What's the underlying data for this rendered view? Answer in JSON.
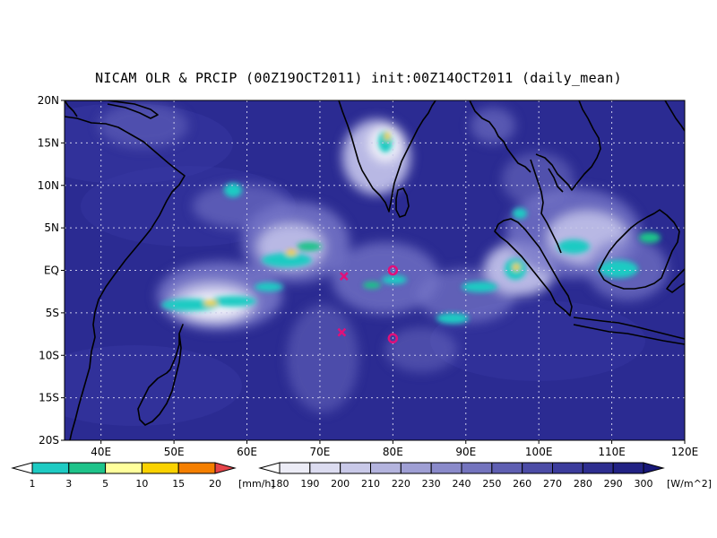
{
  "title": "NICAM OLR & PRCIP (00Z19OCT2011) init:00Z14OCT2011 (daily_mean)",
  "map": {
    "lon_range": [
      35,
      120
    ],
    "lat_range": [
      -20,
      20
    ],
    "lat_ticks": [
      {
        "value": 20,
        "label": "20N"
      },
      {
        "value": 15,
        "label": "15N"
      },
      {
        "value": 10,
        "label": "10N"
      },
      {
        "value": 5,
        "label": "5N"
      },
      {
        "value": 0,
        "label": "EQ"
      },
      {
        "value": -5,
        "label": "5S"
      },
      {
        "value": -10,
        "label": "10S"
      },
      {
        "value": -15,
        "label": "15S"
      },
      {
        "value": -20,
        "label": "20S"
      }
    ],
    "lon_ticks": [
      {
        "value": 40,
        "label": "40E"
      },
      {
        "value": 50,
        "label": "50E"
      },
      {
        "value": 60,
        "label": "60E"
      },
      {
        "value": 70,
        "label": "70E"
      },
      {
        "value": 80,
        "label": "80E"
      },
      {
        "value": 90,
        "label": "90E"
      },
      {
        "value": 100,
        "label": "100E"
      },
      {
        "value": 110,
        "label": "110E"
      },
      {
        "value": 120,
        "label": "120E"
      }
    ],
    "colors": {
      "ocean_deep": "#2b2b92",
      "ocean_mid": "#3c3ca8",
      "cloud_mid": "#7777c8",
      "cloud_light": "#b8b8e4",
      "cloud_white": "#f2f2fa",
      "coast": "#000000",
      "grid": "#c8c8e8",
      "marker": "#e0107a"
    },
    "markers": [
      {
        "type": "x",
        "lon": 73.3,
        "lat": -0.7
      },
      {
        "type": "x",
        "lon": 73.0,
        "lat": -7.3
      },
      {
        "type": "circle",
        "lon": 80.0,
        "lat": 0.0
      },
      {
        "type": "circle",
        "lon": 80.0,
        "lat": -8.0
      }
    ]
  },
  "precip_colorbar": {
    "colors": [
      "#ffffff",
      "#1ecbc3",
      "#1ec38a",
      "#ffff9c",
      "#fad200",
      "#f57f00",
      "#e6444a"
    ],
    "labels": [
      "1",
      "3",
      "5",
      "10",
      "15",
      "20"
    ],
    "unit": "[mm/h]"
  },
  "olr_colorbar": {
    "colors": [
      "#ffffff",
      "#ececf6",
      "#dcdcf0",
      "#c9c9e8",
      "#b4b4de",
      "#9f9fd4",
      "#8a8aca",
      "#7474be",
      "#5f5fb2",
      "#4c4ca6",
      "#3c3c9c",
      "#2e2e90",
      "#222284",
      "#181878"
    ],
    "labels": [
      "180",
      "190",
      "200",
      "210",
      "220",
      "230",
      "240",
      "250",
      "260",
      "270",
      "280",
      "290",
      "300"
    ],
    "unit": "[W/m^2]"
  }
}
